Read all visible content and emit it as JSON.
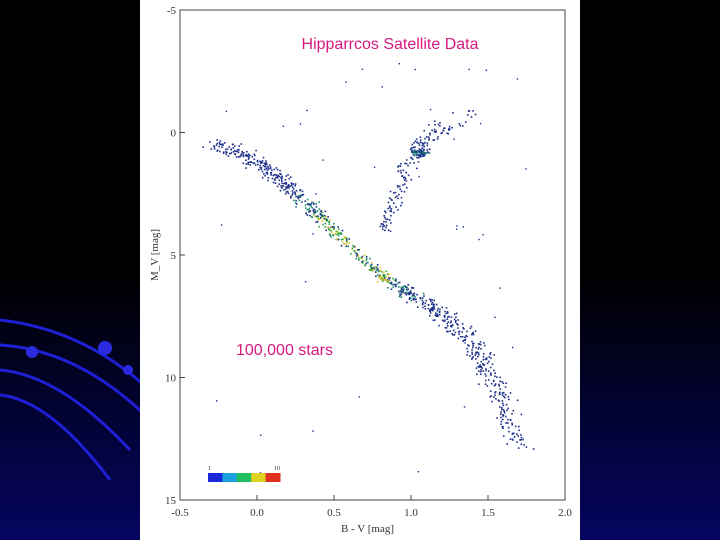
{
  "slide": {
    "title": "Hipparrcos Satellite Data",
    "note": "100,000 stars"
  },
  "colors": {
    "background": "#000000",
    "panel": "#ffffff",
    "text_accent": "#d6197e",
    "decor_blue": "#1a1ad8"
  },
  "chart_data": {
    "type": "scatter",
    "title": "Hipparrcos Satellite Data",
    "xlabel": "B - V [mag]",
    "ylabel": "M_V [mag]",
    "xlim": [
      -0.5,
      2.0
    ],
    "ylim": [
      15,
      -5
    ],
    "y_inverted": true,
    "x_ticks": [
      "-0.5",
      "0.0",
      "0.5",
      "1.0",
      "1.5",
      "2.0"
    ],
    "y_ticks": [
      "-5",
      "0",
      "5",
      "10",
      "15"
    ],
    "colorbar": {
      "low_label": "1",
      "high_label": "10",
      "placement": "bottom-left"
    },
    "annotations": [
      "100,000 stars"
    ],
    "main_sequence_ridge": [
      {
        "x": -0.25,
        "y": 0.5
      },
      {
        "x": 0.0,
        "y": 1.2
      },
      {
        "x": 0.2,
        "y": 2.2
      },
      {
        "x": 0.4,
        "y": 3.4
      },
      {
        "x": 0.6,
        "y": 4.6
      },
      {
        "x": 0.8,
        "y": 5.8
      },
      {
        "x": 1.0,
        "y": 6.6
      },
      {
        "x": 1.2,
        "y": 7.4
      },
      {
        "x": 1.4,
        "y": 8.6
      },
      {
        "x": 1.55,
        "y": 10.5
      },
      {
        "x": 1.7,
        "y": 12.8
      }
    ],
    "red_clump": {
      "x": 1.05,
      "y": 0.8
    },
    "giant_branch": [
      {
        "x": 0.8,
        "y": 4.0
      },
      {
        "x": 0.9,
        "y": 2.6
      },
      {
        "x": 0.95,
        "y": 1.5
      },
      {
        "x": 1.05,
        "y": 0.5
      },
      {
        "x": 1.2,
        "y": -0.3
      },
      {
        "x": 1.4,
        "y": -0.8
      }
    ],
    "grid": false
  }
}
